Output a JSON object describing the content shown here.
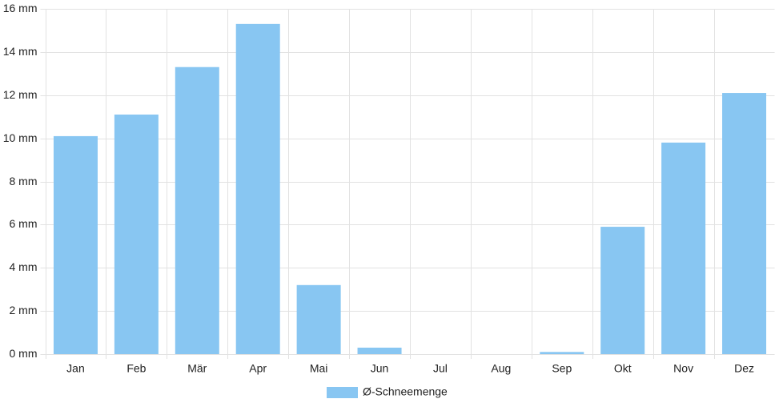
{
  "chart_data": {
    "type": "bar",
    "categories": [
      "Jan",
      "Feb",
      "Mär",
      "Apr",
      "Mai",
      "Jun",
      "Jul",
      "Aug",
      "Sep",
      "Okt",
      "Nov",
      "Dez"
    ],
    "series": [
      {
        "name": "Ø-Schneemenge",
        "color": "#88c6f2",
        "values": [
          10.1,
          11.1,
          13.3,
          15.3,
          3.2,
          0.3,
          0,
          0,
          0.1,
          5.9,
          9.8,
          12.1
        ]
      }
    ],
    "ylim": [
      0,
      16
    ],
    "yticks": [
      {
        "value": 0,
        "label": "0 mm"
      },
      {
        "value": 2,
        "label": "2 mm"
      },
      {
        "value": 4,
        "label": "4 mm"
      },
      {
        "value": 6,
        "label": "6 mm"
      },
      {
        "value": 8,
        "label": "8 mm"
      },
      {
        "value": 10,
        "label": "10 mm"
      },
      {
        "value": 12,
        "label": "12 mm"
      },
      {
        "value": 14,
        "label": "14 mm"
      },
      {
        "value": 16,
        "label": "16 mm"
      }
    ],
    "grid": true,
    "legend": "bottom"
  }
}
